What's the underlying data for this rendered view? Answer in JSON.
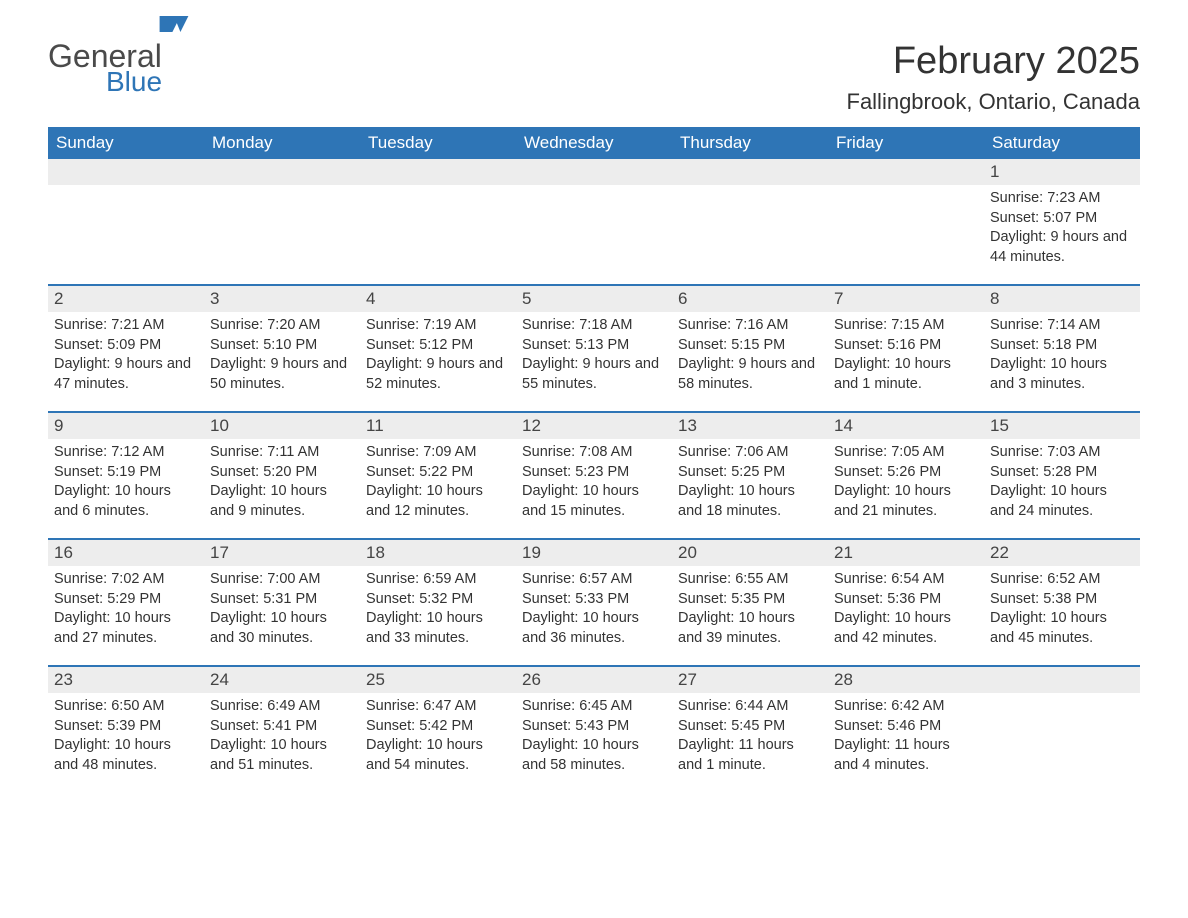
{
  "brand": {
    "general": "General",
    "blue": "Blue",
    "flag_color": "#2e75b6"
  },
  "title": {
    "month": "February 2025",
    "location": "Fallingbrook, Ontario, Canada"
  },
  "colors": {
    "header_bg": "#2e75b6",
    "daynum_bg": "#ededed",
    "text": "#333333",
    "week_border": "#2e75b6"
  },
  "weekdays": [
    "Sunday",
    "Monday",
    "Tuesday",
    "Wednesday",
    "Thursday",
    "Friday",
    "Saturday"
  ],
  "weeks": [
    [
      {
        "day": "",
        "sunrise": "",
        "sunset": "",
        "daylight": ""
      },
      {
        "day": "",
        "sunrise": "",
        "sunset": "",
        "daylight": ""
      },
      {
        "day": "",
        "sunrise": "",
        "sunset": "",
        "daylight": ""
      },
      {
        "day": "",
        "sunrise": "",
        "sunset": "",
        "daylight": ""
      },
      {
        "day": "",
        "sunrise": "",
        "sunset": "",
        "daylight": ""
      },
      {
        "day": "",
        "sunrise": "",
        "sunset": "",
        "daylight": ""
      },
      {
        "day": "1",
        "sunrise": "Sunrise: 7:23 AM",
        "sunset": "Sunset: 5:07 PM",
        "daylight": "Daylight: 9 hours and 44 minutes."
      }
    ],
    [
      {
        "day": "2",
        "sunrise": "Sunrise: 7:21 AM",
        "sunset": "Sunset: 5:09 PM",
        "daylight": "Daylight: 9 hours and 47 minutes."
      },
      {
        "day": "3",
        "sunrise": "Sunrise: 7:20 AM",
        "sunset": "Sunset: 5:10 PM",
        "daylight": "Daylight: 9 hours and 50 minutes."
      },
      {
        "day": "4",
        "sunrise": "Sunrise: 7:19 AM",
        "sunset": "Sunset: 5:12 PM",
        "daylight": "Daylight: 9 hours and 52 minutes."
      },
      {
        "day": "5",
        "sunrise": "Sunrise: 7:18 AM",
        "sunset": "Sunset: 5:13 PM",
        "daylight": "Daylight: 9 hours and 55 minutes."
      },
      {
        "day": "6",
        "sunrise": "Sunrise: 7:16 AM",
        "sunset": "Sunset: 5:15 PM",
        "daylight": "Daylight: 9 hours and 58 minutes."
      },
      {
        "day": "7",
        "sunrise": "Sunrise: 7:15 AM",
        "sunset": "Sunset: 5:16 PM",
        "daylight": "Daylight: 10 hours and 1 minute."
      },
      {
        "day": "8",
        "sunrise": "Sunrise: 7:14 AM",
        "sunset": "Sunset: 5:18 PM",
        "daylight": "Daylight: 10 hours and 3 minutes."
      }
    ],
    [
      {
        "day": "9",
        "sunrise": "Sunrise: 7:12 AM",
        "sunset": "Sunset: 5:19 PM",
        "daylight": "Daylight: 10 hours and 6 minutes."
      },
      {
        "day": "10",
        "sunrise": "Sunrise: 7:11 AM",
        "sunset": "Sunset: 5:20 PM",
        "daylight": "Daylight: 10 hours and 9 minutes."
      },
      {
        "day": "11",
        "sunrise": "Sunrise: 7:09 AM",
        "sunset": "Sunset: 5:22 PM",
        "daylight": "Daylight: 10 hours and 12 minutes."
      },
      {
        "day": "12",
        "sunrise": "Sunrise: 7:08 AM",
        "sunset": "Sunset: 5:23 PM",
        "daylight": "Daylight: 10 hours and 15 minutes."
      },
      {
        "day": "13",
        "sunrise": "Sunrise: 7:06 AM",
        "sunset": "Sunset: 5:25 PM",
        "daylight": "Daylight: 10 hours and 18 minutes."
      },
      {
        "day": "14",
        "sunrise": "Sunrise: 7:05 AM",
        "sunset": "Sunset: 5:26 PM",
        "daylight": "Daylight: 10 hours and 21 minutes."
      },
      {
        "day": "15",
        "sunrise": "Sunrise: 7:03 AM",
        "sunset": "Sunset: 5:28 PM",
        "daylight": "Daylight: 10 hours and 24 minutes."
      }
    ],
    [
      {
        "day": "16",
        "sunrise": "Sunrise: 7:02 AM",
        "sunset": "Sunset: 5:29 PM",
        "daylight": "Daylight: 10 hours and 27 minutes."
      },
      {
        "day": "17",
        "sunrise": "Sunrise: 7:00 AM",
        "sunset": "Sunset: 5:31 PM",
        "daylight": "Daylight: 10 hours and 30 minutes."
      },
      {
        "day": "18",
        "sunrise": "Sunrise: 6:59 AM",
        "sunset": "Sunset: 5:32 PM",
        "daylight": "Daylight: 10 hours and 33 minutes."
      },
      {
        "day": "19",
        "sunrise": "Sunrise: 6:57 AM",
        "sunset": "Sunset: 5:33 PM",
        "daylight": "Daylight: 10 hours and 36 minutes."
      },
      {
        "day": "20",
        "sunrise": "Sunrise: 6:55 AM",
        "sunset": "Sunset: 5:35 PM",
        "daylight": "Daylight: 10 hours and 39 minutes."
      },
      {
        "day": "21",
        "sunrise": "Sunrise: 6:54 AM",
        "sunset": "Sunset: 5:36 PM",
        "daylight": "Daylight: 10 hours and 42 minutes."
      },
      {
        "day": "22",
        "sunrise": "Sunrise: 6:52 AM",
        "sunset": "Sunset: 5:38 PM",
        "daylight": "Daylight: 10 hours and 45 minutes."
      }
    ],
    [
      {
        "day": "23",
        "sunrise": "Sunrise: 6:50 AM",
        "sunset": "Sunset: 5:39 PM",
        "daylight": "Daylight: 10 hours and 48 minutes."
      },
      {
        "day": "24",
        "sunrise": "Sunrise: 6:49 AM",
        "sunset": "Sunset: 5:41 PM",
        "daylight": "Daylight: 10 hours and 51 minutes."
      },
      {
        "day": "25",
        "sunrise": "Sunrise: 6:47 AM",
        "sunset": "Sunset: 5:42 PM",
        "daylight": "Daylight: 10 hours and 54 minutes."
      },
      {
        "day": "26",
        "sunrise": "Sunrise: 6:45 AM",
        "sunset": "Sunset: 5:43 PM",
        "daylight": "Daylight: 10 hours and 58 minutes."
      },
      {
        "day": "27",
        "sunrise": "Sunrise: 6:44 AM",
        "sunset": "Sunset: 5:45 PM",
        "daylight": "Daylight: 11 hours and 1 minute."
      },
      {
        "day": "28",
        "sunrise": "Sunrise: 6:42 AM",
        "sunset": "Sunset: 5:46 PM",
        "daylight": "Daylight: 11 hours and 4 minutes."
      },
      {
        "day": "",
        "sunrise": "",
        "sunset": "",
        "daylight": ""
      }
    ]
  ]
}
